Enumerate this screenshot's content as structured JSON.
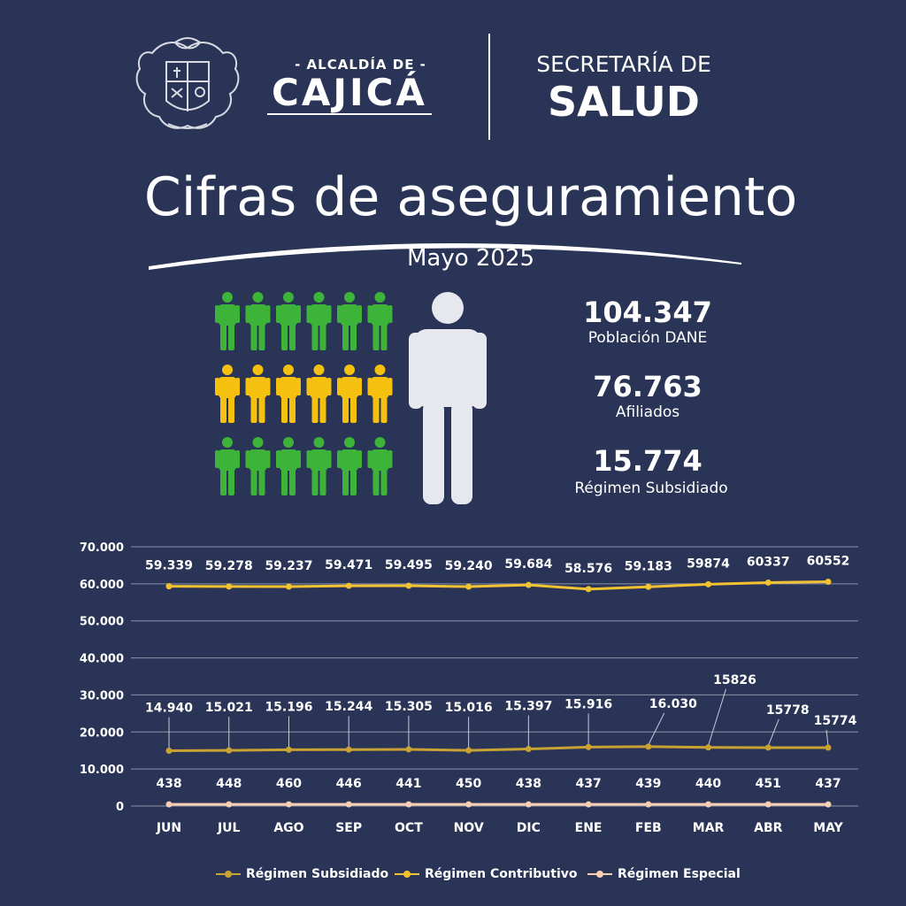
{
  "header": {
    "alcaldia_small": "- ALCALDÍA DE -",
    "alcaldia_big": "CAJICÁ",
    "secretaria_small": "SECRETARÍA DE",
    "secretaria_big": "SALUD"
  },
  "title": "Cifras de aseguramiento",
  "subtitle": "Mayo 2025",
  "colors": {
    "background": "#2a3456",
    "green_figure": "#3db33a",
    "yellow_figure": "#f5c10e",
    "big_figure": "#e6e8ee",
    "subsidiado": "#c8a233",
    "contributivo": "#f2c230",
    "especial": "#f7cfb2"
  },
  "stats": [
    {
      "value": "104.347",
      "label": "Población DANE"
    },
    {
      "value": "76.763",
      "label": "Afiliados"
    },
    {
      "value": "15.774",
      "label": "Régimen Subsidiado"
    }
  ],
  "chart_data": {
    "type": "line",
    "categories": [
      "JUN",
      "JUL",
      "AGO",
      "SEP",
      "OCT",
      "NOV",
      "DIC",
      "ENE",
      "FEB",
      "MAR",
      "ABR",
      "MAY"
    ],
    "yticks": [
      "0",
      "10.000",
      "20.000",
      "30.000",
      "40.000",
      "50.000",
      "60.000",
      "70.000"
    ],
    "ylim": [
      0,
      70000
    ],
    "grid": true,
    "legend_position": "bottom",
    "series": [
      {
        "name": "Régimen Subsidiado",
        "values": [
          14940,
          15021,
          15196,
          15244,
          15305,
          15016,
          15397,
          15916,
          16030,
          15826,
          15778,
          15774
        ],
        "labels": [
          "14.940",
          "15.021",
          "15.196",
          "15.244",
          "15.305",
          "15.016",
          "15.397",
          "15.916",
          "16.030",
          "15826",
          "15778",
          "15774"
        ]
      },
      {
        "name": "Régimen Contributivo",
        "values": [
          59339,
          59278,
          59237,
          59471,
          59495,
          59240,
          59684,
          58576,
          59183,
          59874,
          60337,
          60552
        ],
        "labels": [
          "59.339",
          "59.278",
          "59.237",
          "59.471",
          "59.495",
          "59.240",
          "59.684",
          "58.576",
          "59.183",
          "59874",
          "60337",
          "60552"
        ]
      },
      {
        "name": "Régimen Especial",
        "values": [
          438,
          448,
          460,
          446,
          441,
          450,
          438,
          437,
          439,
          440,
          451,
          437
        ],
        "labels": [
          "438",
          "448",
          "460",
          "446",
          "441",
          "450",
          "438",
          "437",
          "439",
          "440",
          "451",
          "437"
        ]
      }
    ]
  }
}
